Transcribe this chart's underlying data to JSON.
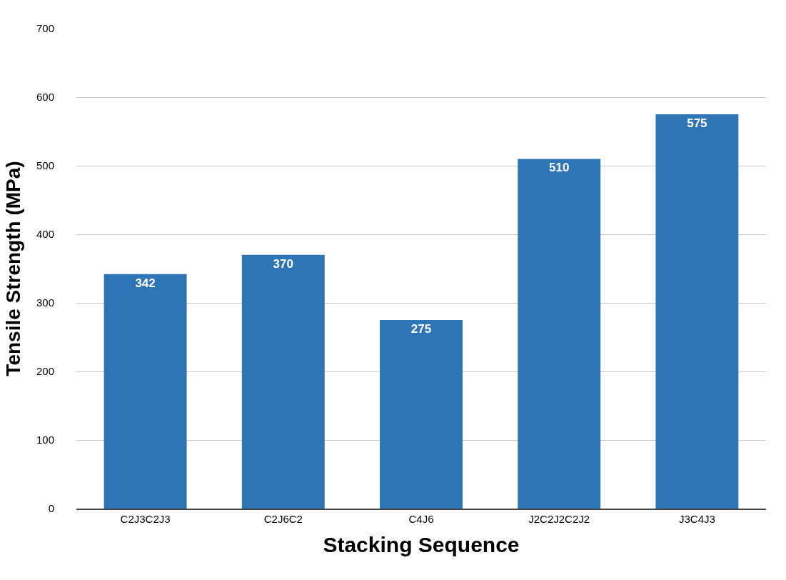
{
  "chart_data": {
    "type": "bar",
    "xlabel": "Stacking Sequence",
    "ylabel": "Tensile Strength (MPa)",
    "categories": [
      "C2J3C2J3",
      "C2J6C2",
      "C4J6",
      "J2C2J2C2J2",
      "J3C4J3"
    ],
    "values": [
      342,
      370,
      275,
      510,
      575
    ],
    "color": "#2e75b6",
    "ylim": [
      0,
      700
    ],
    "yticks": [
      0,
      100,
      200,
      300,
      400,
      500,
      600,
      700
    ],
    "grid": "y",
    "data_labels": true,
    "legend": false
  }
}
